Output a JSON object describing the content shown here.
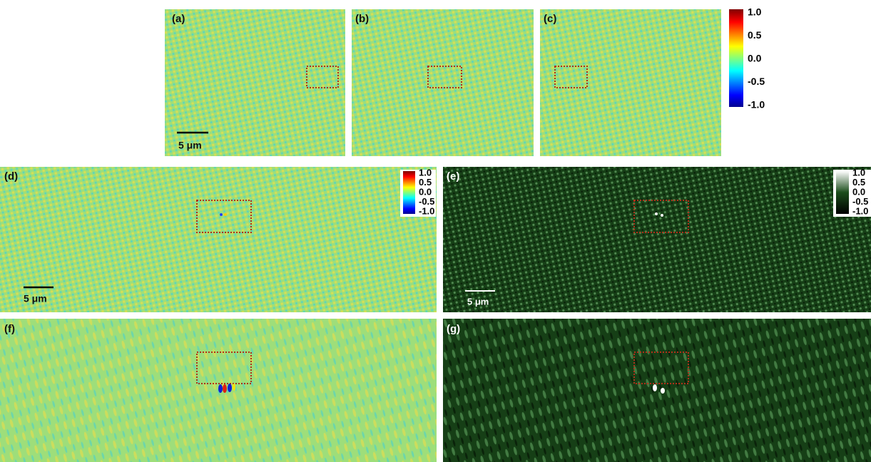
{
  "panels": [
    {
      "label": "(a)"
    },
    {
      "label": "(b)"
    },
    {
      "label": "(c)"
    },
    {
      "label": "(d)"
    },
    {
      "label": "(e)"
    },
    {
      "label": "(f)"
    },
    {
      "label": "(g)"
    }
  ],
  "scale_bars": {
    "a": "5 μm",
    "d": "5 μm",
    "e": "5 μm"
  },
  "colorbars": {
    "top": [
      "1.0",
      "0.5",
      "0.0",
      "-0.5",
      "-1.0"
    ],
    "d": [
      "1.0",
      "0.5",
      "0.0",
      "-0.5",
      "-1.0"
    ],
    "e": [
      "1.0",
      "0.5",
      "0.0",
      "-0.5",
      "-1.0"
    ]
  }
}
